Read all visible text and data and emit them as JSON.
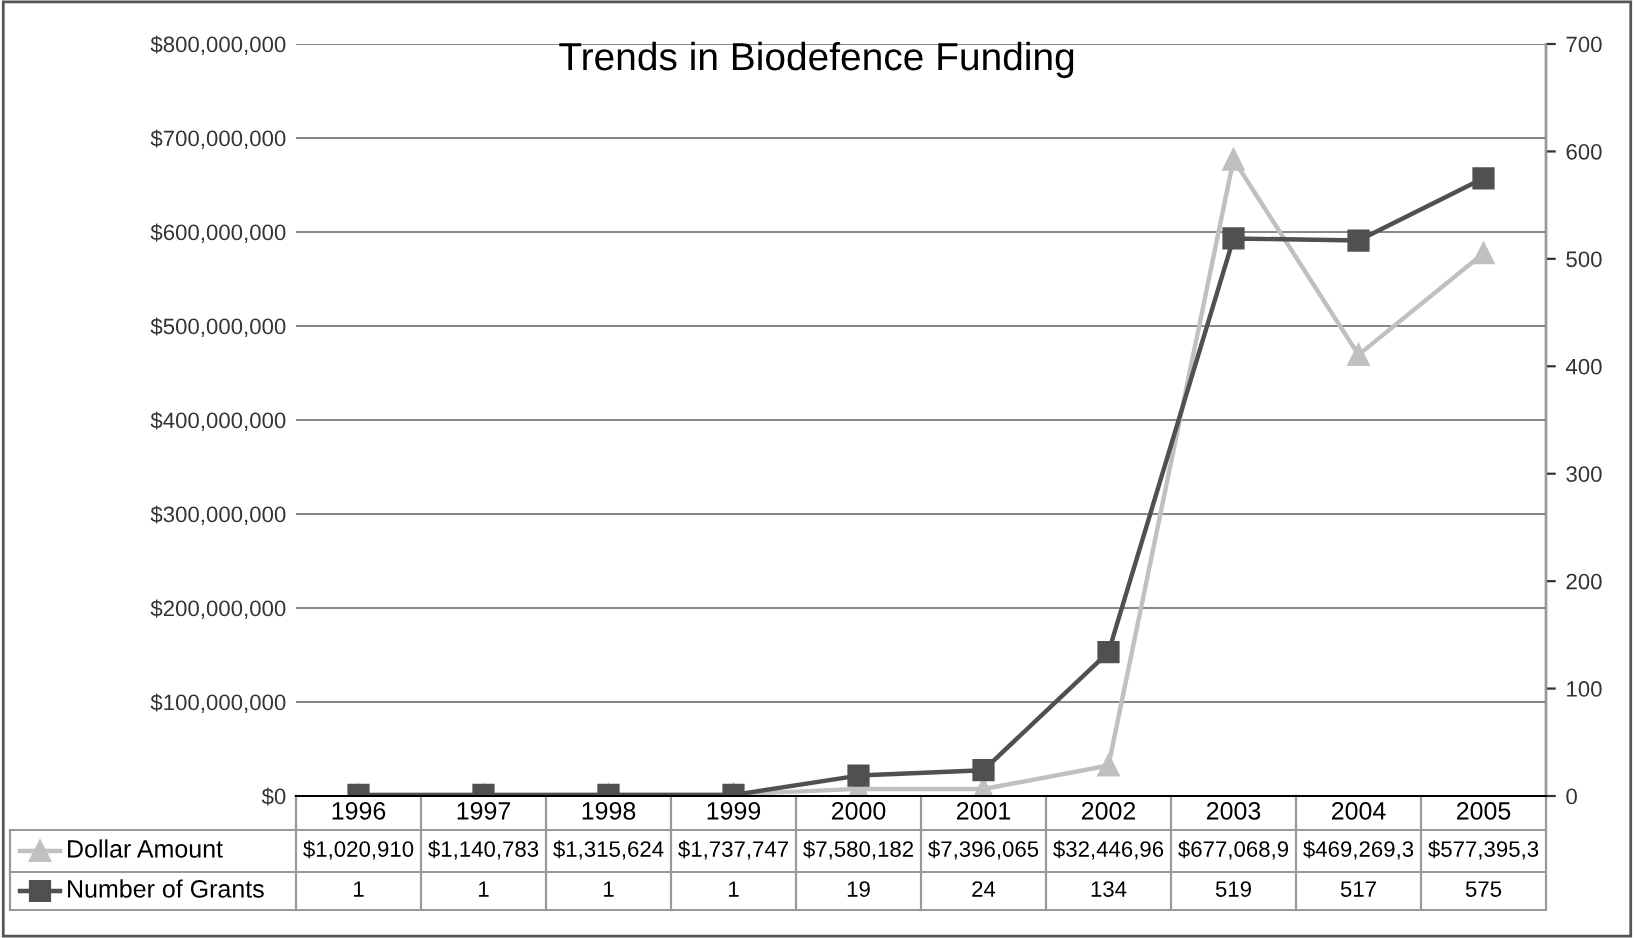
{
  "chart_data": {
    "type": "line",
    "title": "Trends in Biodefence Funding",
    "categories": [
      "1996",
      "1997",
      "1998",
      "1999",
      "2000",
      "2001",
      "2002",
      "2003",
      "2004",
      "2005"
    ],
    "series": [
      {
        "name": "Dollar Amount",
        "color": "#c0c0c0",
        "marker": "triangle",
        "values": [
          1020910,
          1140783,
          1315624,
          1737747,
          7580182,
          7396065,
          32446960,
          677068900,
          469269300,
          577395300
        ],
        "value_labels": [
          "$1,020,910",
          "$1,140,783",
          "$1,315,624",
          "$1,737,747",
          "$7,580,182",
          "$7,396,065",
          "$32,446,96",
          "$677,068,9",
          "$469,269,3",
          "$577,395,3"
        ]
      },
      {
        "name": "Number of Grants",
        "color": "#505050",
        "marker": "square",
        "axis": "y2",
        "values": [
          1,
          1,
          1,
          1,
          19,
          24,
          134,
          519,
          517,
          575
        ],
        "value_labels": [
          "1",
          "1",
          "1",
          "1",
          "19",
          "24",
          "134",
          "519",
          "517",
          "575"
        ]
      }
    ],
    "ylim": [
      0,
      800000000
    ],
    "yticks": [
      {
        "value": 0,
        "label": "$0"
      },
      {
        "value": 100000000,
        "label": "$100,000,000"
      },
      {
        "value": 200000000,
        "label": "$200,000,000"
      },
      {
        "value": 300000000,
        "label": "$300,000,000"
      },
      {
        "value": 400000000,
        "label": "$400,000,000"
      },
      {
        "value": 500000000,
        "label": "$500,000,000"
      },
      {
        "value": 600000000,
        "label": "$600,000,000"
      },
      {
        "value": 700000000,
        "label": "$700,000,000"
      },
      {
        "value": 800000000,
        "label": "$800,000,000"
      }
    ],
    "y2lim": [
      0,
      700
    ],
    "y2ticks": [
      0,
      100,
      200,
      300,
      400,
      500,
      600,
      700
    ],
    "grid": "y",
    "legend": "bottom",
    "line_style": "solid"
  }
}
